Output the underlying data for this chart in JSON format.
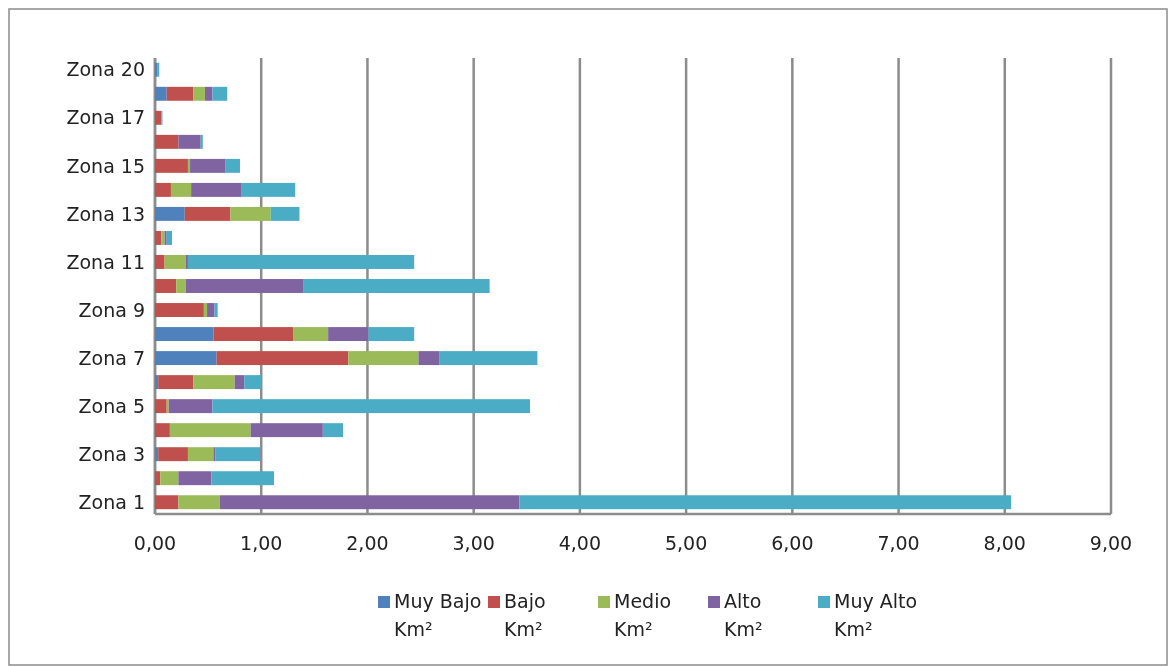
{
  "chart_data": {
    "type": "bar",
    "orientation": "horizontal",
    "stacked": true,
    "categories": [
      "Zona 20",
      null,
      "Zona 17",
      null,
      "Zona 15",
      null,
      "Zona 13",
      null,
      "Zona 11",
      null,
      "Zona 9",
      null,
      "Zona 7",
      null,
      "Zona 5",
      null,
      "Zona 3",
      null,
      "Zona 1"
    ],
    "series": [
      {
        "name": "Muy Bajo Km²",
        "color": "#4f81bd",
        "values": [
          0.02,
          0.11,
          0,
          0,
          0,
          0,
          0.28,
          0,
          0,
          0,
          0,
          0.55,
          0.58,
          0.03,
          0,
          0,
          0.03,
          0,
          0
        ]
      },
      {
        "name": "Bajo Km²",
        "color": "#c0504d",
        "values": [
          0,
          0.25,
          0.06,
          0.22,
          0.31,
          0.15,
          0.43,
          0.06,
          0.09,
          0.2,
          0.46,
          0.75,
          1.24,
          0.33,
          0.11,
          0.14,
          0.28,
          0.05,
          0.22
        ]
      },
      {
        "name": "Medio Km²",
        "color": "#9bbb59",
        "values": [
          0,
          0.11,
          0,
          0,
          0.02,
          0.19,
          0.38,
          0.03,
          0.2,
          0.09,
          0.03,
          0.33,
          0.66,
          0.39,
          0.02,
          0.76,
          0.24,
          0.17,
          0.39
        ]
      },
      {
        "name": "Alto Km²",
        "color": "#8064a2",
        "values": [
          0,
          0.07,
          0,
          0.21,
          0.33,
          0.47,
          0,
          0.02,
          0.02,
          1.11,
          0.07,
          0.38,
          0.2,
          0.09,
          0.41,
          0.68,
          0.02,
          0.31,
          2.82
        ]
      },
      {
        "name": "Muy Alto Km²",
        "color": "#4bacc6",
        "values": [
          0.02,
          0.14,
          0.01,
          0.02,
          0.14,
          0.51,
          0.27,
          0.05,
          2.13,
          1.75,
          0.03,
          0.43,
          0.92,
          0.16,
          2.99,
          0.19,
          0.42,
          0.59,
          4.63
        ]
      }
    ],
    "xlim": [
      0,
      9
    ],
    "xticks": [
      {
        "value": 0,
        "label": "0,00"
      },
      {
        "value": 1,
        "label": "1,00"
      },
      {
        "value": 2,
        "label": "2,00"
      },
      {
        "value": 3,
        "label": "3,00"
      },
      {
        "value": 4,
        "label": "4,00"
      },
      {
        "value": 5,
        "label": "5,00"
      },
      {
        "value": 6,
        "label": "6,00"
      },
      {
        "value": 7,
        "label": "7,00"
      },
      {
        "value": 8,
        "label": "8,00"
      },
      {
        "value": 9,
        "label": "9,00"
      }
    ],
    "grid": "x",
    "legend": "bottom"
  }
}
